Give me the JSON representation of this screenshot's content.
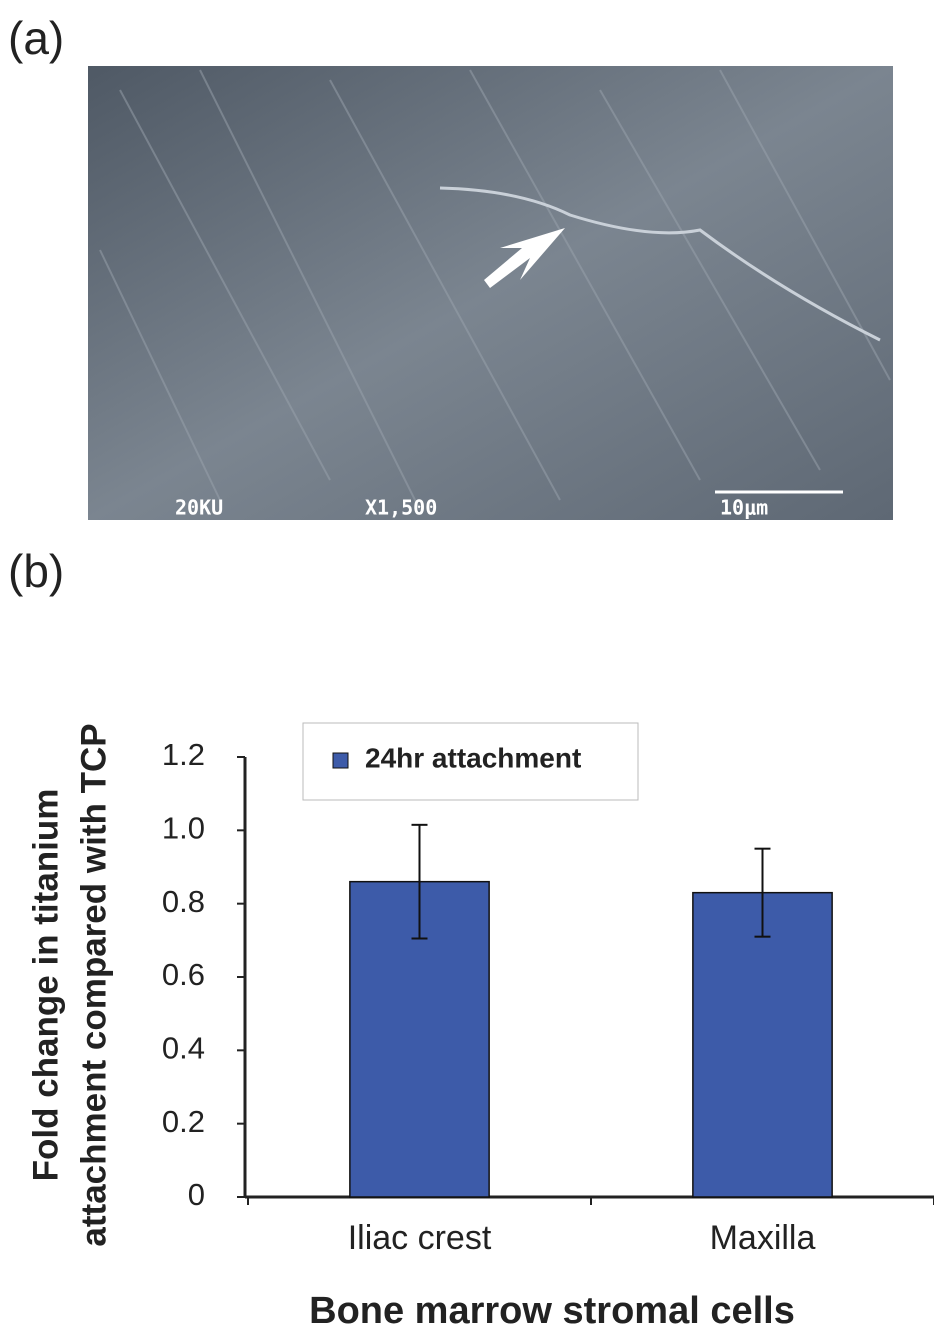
{
  "figure": {
    "panel_a_label": "(a)",
    "panel_b_label": "(b)",
    "image_texts": [
      "20KU",
      "X1,500",
      "10μm"
    ]
  },
  "chart_data": {
    "type": "bar",
    "ylabel": [
      "Fold change in titanium",
      "attachment compared with TCP"
    ],
    "xlabel": "Bone marrow stromal cells",
    "categories": [
      "Iliac crest",
      "Maxilla"
    ],
    "series": [
      {
        "name": "24hr attachment",
        "color": "#3d5ba9",
        "values": [
          0.86,
          0.83
        ],
        "errors": [
          0.155,
          0.12
        ]
      }
    ],
    "ylim": [
      0,
      1.2
    ],
    "yticks": [
      0,
      0.2,
      0.4,
      0.6,
      0.8,
      {
        "value": 1,
        "label": "1.0"
      },
      1.2
    ],
    "legend": "top-left"
  }
}
